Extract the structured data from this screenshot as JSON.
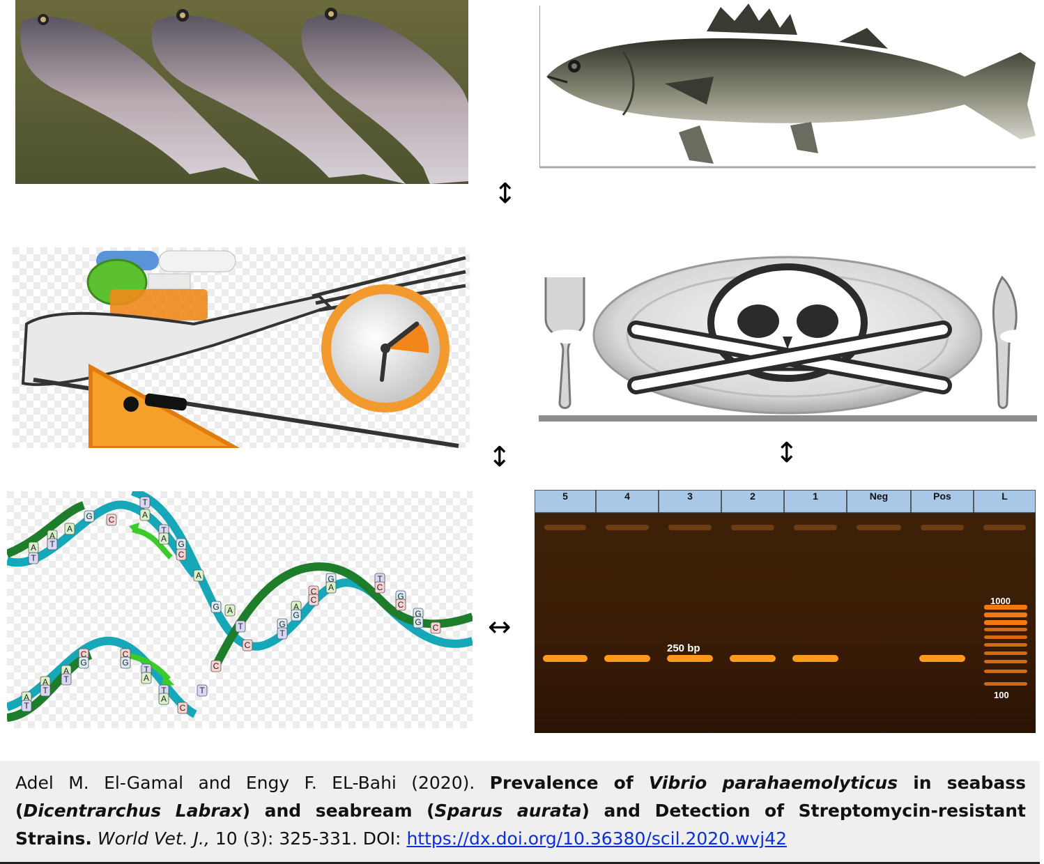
{
  "panels": {
    "seabream_photo": {
      "icon": "seabream-fish-icon"
    },
    "seabass_photo": {
      "icon": "seabass-fish-icon"
    },
    "food_safety_icon": {
      "icon": "food-safety-clipart-icon"
    },
    "poison_plate_icon": {
      "icon": "skull-crossbones-plate-icon"
    },
    "dna_replication": {
      "icon": "dna-double-helix-icon",
      "bases_top": [
        "A",
        "T",
        "A",
        "T",
        "A",
        "G",
        "C",
        "T",
        "A",
        "T",
        "A",
        "G",
        "C",
        "A",
        "G",
        "A",
        "T",
        "C"
      ],
      "bases_bottom": [
        "A",
        "T",
        "A",
        "T",
        "A",
        "T",
        "C",
        "G",
        "C",
        "G",
        "T",
        "A",
        "T",
        "A",
        "C",
        "T",
        "C",
        "G",
        "T",
        "A",
        "G",
        "C",
        "C",
        "G",
        "A",
        "T",
        "C",
        "G",
        "C",
        "G",
        "G",
        "C"
      ]
    }
  },
  "arrows": {
    "top_middle": "↕",
    "middle_left": "↕",
    "middle_right": "↕",
    "bottom": "↔"
  },
  "gel": {
    "lanes": [
      "5",
      "4",
      "3",
      "2",
      "1",
      "Neg",
      "Pos",
      "L"
    ],
    "band_label": "250 bp",
    "ladder_top_label": "1000",
    "ladder_bottom_label": "100",
    "band_present": [
      true,
      true,
      true,
      true,
      true,
      false,
      true
    ],
    "colors": {
      "background": "#3a1c06",
      "band": "#ff9a1a",
      "header": "#a9c8e8"
    }
  },
  "caption": {
    "authors": "Adel M. El-Gamal and Engy F. EL-Bahi (2020).",
    "title_1": "Prevalence of",
    "title_2": "Vibrio parahaemolyticus",
    "title_3": "in seabass (",
    "title_4": "Dicentrarchus Labrax",
    "title_5": ") and seabream (",
    "title_6": "Sparus aurata",
    "title_7": ") and Detection of Streptomycin-resistant Strains.",
    "journal": "World Vet. J.,",
    "volume": "10 (3): 325-331. DOI:",
    "doi_url": "https://dx.doi.org/10.36380/scil.2020.wvj42"
  }
}
